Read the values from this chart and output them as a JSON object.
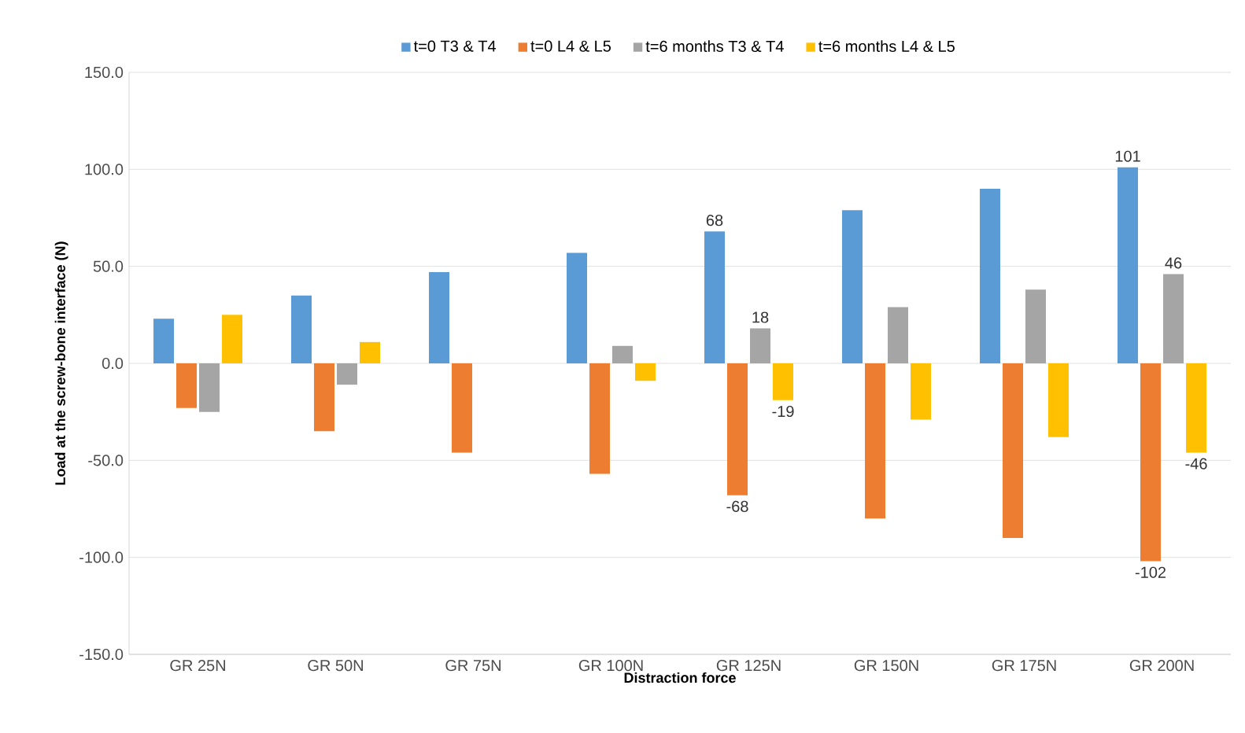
{
  "chart_data": {
    "type": "bar",
    "xlabel": "Distraction force",
    "ylabel": "Load at the screw-bone interface (N)",
    "categories": [
      "GR 25N",
      "GR 50N",
      "GR 75N",
      "GR 100N",
      "GR 125N",
      "GR 150N",
      "GR 175N",
      "GR 200N"
    ],
    "series": [
      {
        "name": "t=0 T3 & T4",
        "color": "#5b9bd5",
        "values": [
          23,
          35,
          47,
          57,
          68,
          79,
          90,
          101
        ],
        "value_labels": [
          null,
          null,
          null,
          null,
          "68",
          null,
          null,
          "101"
        ]
      },
      {
        "name": "t=0 L4 & L5",
        "color": "#ed7d31",
        "values": [
          -23,
          -35,
          -46,
          -57,
          -68,
          -80,
          -90,
          -102
        ],
        "value_labels": [
          null,
          null,
          null,
          null,
          "-68",
          null,
          null,
          "-102"
        ]
      },
      {
        "name": "t=6 months T3 & T4",
        "color": "#a5a5a5",
        "values": [
          -25,
          -11,
          null,
          9,
          18,
          29,
          38,
          46
        ],
        "value_labels": [
          null,
          null,
          null,
          null,
          "18",
          null,
          null,
          "46"
        ]
      },
      {
        "name": "t=6 months L4 & L5",
        "color": "#ffc000",
        "values": [
          25,
          11,
          null,
          -9,
          -19,
          -29,
          -38,
          -46
        ],
        "value_labels": [
          null,
          null,
          null,
          null,
          "-19",
          null,
          null,
          "-46"
        ]
      }
    ],
    "ylim": [
      -150,
      150
    ],
    "yticks": [
      {
        "value": -150,
        "label": "-150.0"
      },
      {
        "value": -100,
        "label": "-100.0"
      },
      {
        "value": -50,
        "label": "-50.0"
      },
      {
        "value": 0,
        "label": "0.0"
      },
      {
        "value": 50,
        "label": "50.0"
      },
      {
        "value": 100,
        "label": "100.0"
      },
      {
        "value": 150,
        "label": "150.0"
      }
    ],
    "grid": "y",
    "legend": "top"
  }
}
